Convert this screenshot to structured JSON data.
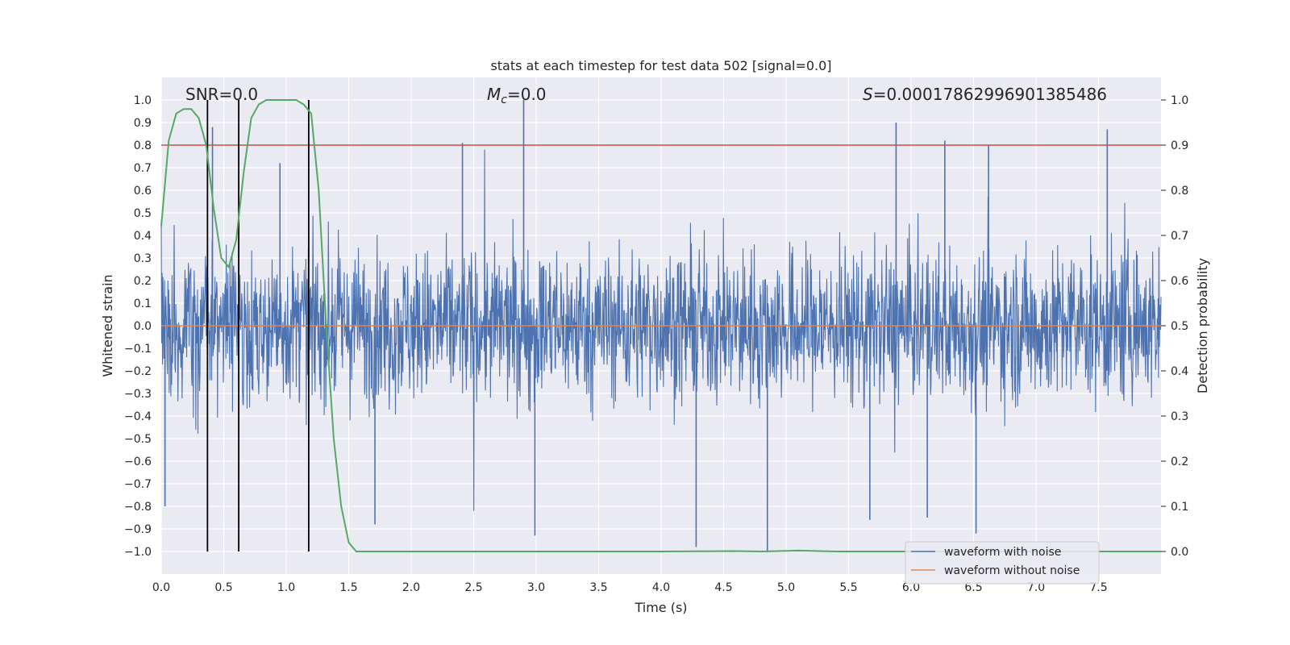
{
  "chart_data": {
    "type": "line",
    "title": "stats at each timestep for test data 502 [signal=0.0]",
    "xlabel": "Time (s)",
    "ylabel": "Whitened strain",
    "y2label": "Detection probability",
    "xlim": [
      0.0,
      8.0
    ],
    "ylim": [
      -1.1,
      1.1
    ],
    "y2lim": [
      -0.05,
      1.05
    ],
    "xticks": [
      "0.0",
      "0.5",
      "1.0",
      "1.5",
      "2.0",
      "2.5",
      "3.0",
      "3.5",
      "4.0",
      "4.5",
      "5.0",
      "5.5",
      "6.0",
      "6.5",
      "7.0",
      "7.5"
    ],
    "xtick_values": [
      0.0,
      0.5,
      1.0,
      1.5,
      2.0,
      2.5,
      3.0,
      3.5,
      4.0,
      4.5,
      5.0,
      5.5,
      6.0,
      6.5,
      7.0,
      7.5
    ],
    "yticks": [
      "−1.0",
      "−0.9",
      "−0.8",
      "−0.7",
      "−0.6",
      "−0.5",
      "−0.4",
      "−0.3",
      "−0.2",
      "−0.1",
      "0.0",
      "0.1",
      "0.2",
      "0.3",
      "0.4",
      "0.5",
      "0.6",
      "0.7",
      "0.8",
      "0.9",
      "1.0"
    ],
    "ytick_values": [
      -1.0,
      -0.9,
      -0.8,
      -0.7,
      -0.6,
      -0.5,
      -0.4,
      -0.3,
      -0.2,
      -0.1,
      0.0,
      0.1,
      0.2,
      0.3,
      0.4,
      0.5,
      0.6,
      0.7,
      0.8,
      0.9,
      1.0
    ],
    "y2ticks": [
      "0.0",
      "0.1",
      "0.2",
      "0.3",
      "0.4",
      "0.5",
      "0.6",
      "0.7",
      "0.8",
      "0.9",
      "1.0"
    ],
    "y2tick_values": [
      0.0,
      0.1,
      0.2,
      0.3,
      0.4,
      0.5,
      0.6,
      0.7,
      0.8,
      0.9,
      1.0
    ],
    "threshold": {
      "value": 0.8,
      "axis": "left",
      "color": "#c44e52"
    },
    "vertical_markers": [
      0.37,
      0.62,
      1.18
    ],
    "annotations": {
      "snr": "SNR=0.0",
      "mc_symbol": "M",
      "mc_sub": "c",
      "mc_value": "=0.0",
      "s_symbol": "S",
      "s_value": "=0.0001786299690138548​6"
    },
    "series": [
      {
        "name": "waveform with noise",
        "color": "#4c72b0",
        "axis": "left",
        "description": "dense whitened noise, band approx ±0.4 with spikes",
        "peaks": [
          {
            "x": 0.41,
            "y": 0.88
          },
          {
            "x": 0.95,
            "y": 0.72
          },
          {
            "x": 2.41,
            "y": 0.81
          },
          {
            "x": 2.9,
            "y": 1.0
          },
          {
            "x": 5.88,
            "y": 0.9
          },
          {
            "x": 6.27,
            "y": 0.82
          },
          {
            "x": 6.62,
            "y": 0.8
          },
          {
            "x": 7.57,
            "y": 0.87
          }
        ],
        "troughs": [
          {
            "x": 0.03,
            "y": -0.8
          },
          {
            "x": 1.71,
            "y": -0.88
          },
          {
            "x": 2.99,
            "y": -0.93
          },
          {
            "x": 4.28,
            "y": -0.98
          },
          {
            "x": 4.85,
            "y": -1.0
          },
          {
            "x": 5.67,
            "y": -0.86
          },
          {
            "x": 6.13,
            "y": -0.85
          },
          {
            "x": 6.52,
            "y": -0.92
          }
        ]
      },
      {
        "name": "waveform without noise",
        "color": "#dd8452",
        "axis": "left",
        "x": [
          0.0,
          8.0
        ],
        "y": [
          0.0,
          0.0
        ]
      },
      {
        "name": "detection probability",
        "color": "#55a868",
        "axis": "right",
        "x": [
          0.0,
          0.06,
          0.12,
          0.18,
          0.24,
          0.3,
          0.36,
          0.42,
          0.48,
          0.54,
          0.6,
          0.66,
          0.72,
          0.78,
          0.84,
          0.9,
          0.96,
          1.02,
          1.08,
          1.14,
          1.2,
          1.26,
          1.32,
          1.38,
          1.44,
          1.5,
          1.56,
          1.62,
          2.0,
          3.0,
          4.0,
          4.6,
          4.8,
          5.1,
          5.4,
          6.0,
          7.0,
          8.0
        ],
        "y": [
          0.72,
          0.91,
          0.97,
          0.98,
          0.98,
          0.96,
          0.9,
          0.76,
          0.65,
          0.63,
          0.69,
          0.84,
          0.96,
          0.99,
          1.0,
          1.0,
          1.0,
          1.0,
          1.0,
          0.99,
          0.97,
          0.8,
          0.5,
          0.25,
          0.1,
          0.02,
          0.0,
          0.0,
          0.0,
          0.0,
          0.0,
          0.001,
          0.0,
          0.002,
          0.0,
          0.0,
          0.0,
          0.0
        ]
      }
    ],
    "legend": {
      "position": "lower-right",
      "entries": [
        {
          "label": "waveform with noise",
          "color": "#4c72b0"
        },
        {
          "label": "waveform without noise",
          "color": "#dd8452"
        }
      ]
    }
  }
}
